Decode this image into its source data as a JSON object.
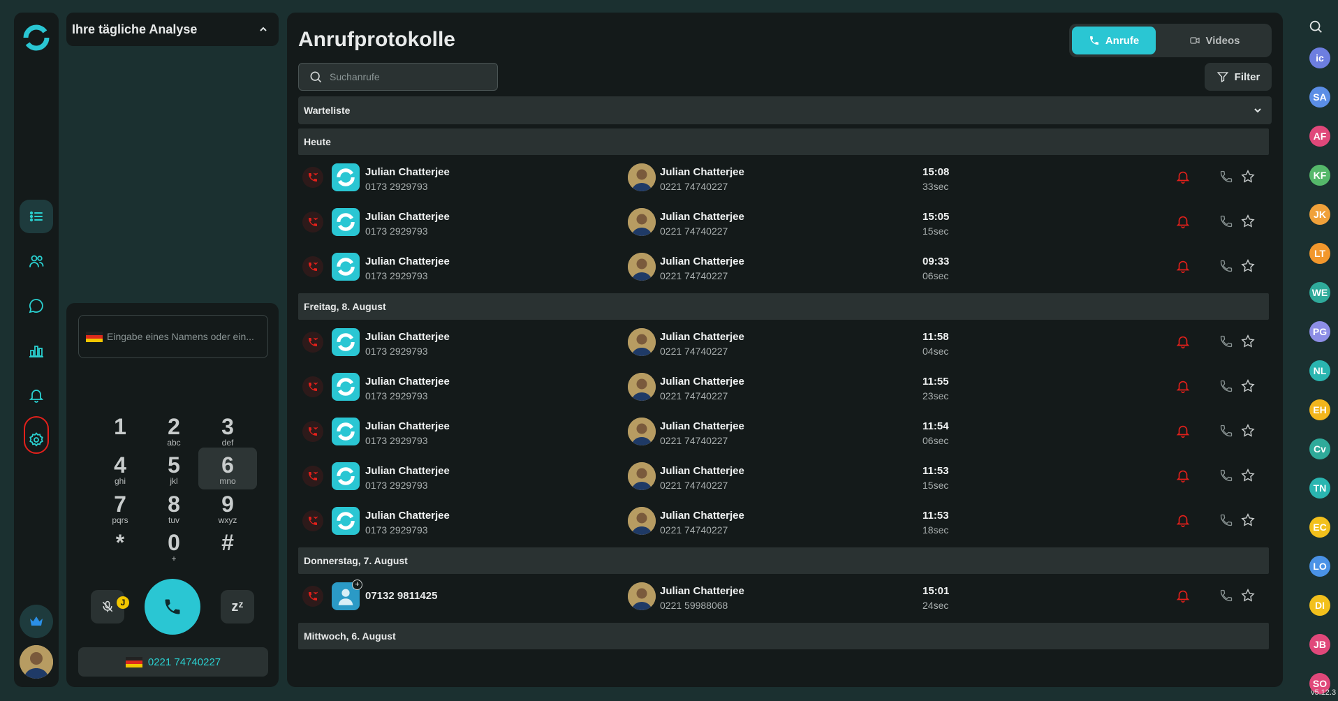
{
  "analysis_panel": {
    "title": "Ihre tägliche Analyse"
  },
  "dialer": {
    "input_placeholder": "Eingabe eines Namens oder ein...",
    "keys": [
      {
        "digit": "1",
        "letters": ""
      },
      {
        "digit": "2",
        "letters": "abc"
      },
      {
        "digit": "3",
        "letters": "def"
      },
      {
        "digit": "4",
        "letters": "ghi"
      },
      {
        "digit": "5",
        "letters": "jkl"
      },
      {
        "digit": "6",
        "letters": "mno"
      },
      {
        "digit": "7",
        "letters": "pqrs"
      },
      {
        "digit": "8",
        "letters": "tuv"
      },
      {
        "digit": "9",
        "letters": "wxyz"
      },
      {
        "digit": "*",
        "letters": ""
      },
      {
        "digit": "0",
        "letters": "+"
      },
      {
        "digit": "#",
        "letters": ""
      }
    ],
    "mic_badge": "J",
    "snooze_label": "zᶻ",
    "caller_id": "0221 74740227"
  },
  "header": {
    "title": "Anrufprotokolle",
    "tab_calls": "Anrufe",
    "tab_videos": "Videos",
    "search_placeholder": "Suchanrufe",
    "filter_label": "Filter",
    "waitlist_label": "Warteliste"
  },
  "sections": [
    {
      "label": "Heute",
      "rows": [
        {
          "from_name": "Julian Chatterjee",
          "from_number": "0173 2929793",
          "to_name": "Julian Chatterjee",
          "to_number": "0221 74740227",
          "time": "15:08",
          "duration": "33sec"
        },
        {
          "from_name": "Julian Chatterjee",
          "from_number": "0173 2929793",
          "to_name": "Julian Chatterjee",
          "to_number": "0221 74740227",
          "time": "15:05",
          "duration": "15sec"
        },
        {
          "from_name": "Julian Chatterjee",
          "from_number": "0173 2929793",
          "to_name": "Julian Chatterjee",
          "to_number": "0221 74740227",
          "time": "09:33",
          "duration": "06sec"
        }
      ]
    },
    {
      "label": "Freitag, 8. August",
      "rows": [
        {
          "from_name": "Julian Chatterjee",
          "from_number": "0173 2929793",
          "to_name": "Julian Chatterjee",
          "to_number": "0221 74740227",
          "time": "11:58",
          "duration": "04sec"
        },
        {
          "from_name": "Julian Chatterjee",
          "from_number": "0173 2929793",
          "to_name": "Julian Chatterjee",
          "to_number": "0221 74740227",
          "time": "11:55",
          "duration": "23sec"
        },
        {
          "from_name": "Julian Chatterjee",
          "from_number": "0173 2929793",
          "to_name": "Julian Chatterjee",
          "to_number": "0221 74740227",
          "time": "11:54",
          "duration": "06sec"
        },
        {
          "from_name": "Julian Chatterjee",
          "from_number": "0173 2929793",
          "to_name": "Julian Chatterjee",
          "to_number": "0221 74740227",
          "time": "11:53",
          "duration": "15sec"
        },
        {
          "from_name": "Julian Chatterjee",
          "from_number": "0173 2929793",
          "to_name": "Julian Chatterjee",
          "to_number": "0221 74740227",
          "time": "11:53",
          "duration": "18sec"
        }
      ]
    },
    {
      "label": "Donnerstag, 7. August",
      "rows": [
        {
          "from_name": "",
          "from_number": "07132 9811425",
          "unknown": true,
          "to_name": "Julian Chatterjee",
          "to_number": "0221 59988068",
          "time": "15:01",
          "duration": "24sec"
        }
      ]
    },
    {
      "label": "Mittwoch, 6. August",
      "rows": []
    }
  ],
  "contacts": [
    {
      "initials": "ic",
      "color": "#6d7ee0"
    },
    {
      "initials": "SA",
      "color": "#5b8ee6"
    },
    {
      "initials": "AF",
      "color": "#e0487a"
    },
    {
      "initials": "KF",
      "color": "#55b86a"
    },
    {
      "initials": "JK",
      "color": "#f0a13a"
    },
    {
      "initials": "LT",
      "color": "#f2972c"
    },
    {
      "initials": "WE",
      "color": "#2faa9a"
    },
    {
      "initials": "PG",
      "color": "#8d8ee6"
    },
    {
      "initials": "NL",
      "color": "#2ab5b0"
    },
    {
      "initials": "EH",
      "color": "#f2b51c"
    },
    {
      "initials": "Cv",
      "color": "#2faa9a"
    },
    {
      "initials": "TN",
      "color": "#2ab5b0"
    },
    {
      "initials": "EC",
      "color": "#f2c01c"
    },
    {
      "initials": "LO",
      "color": "#4a92e6"
    },
    {
      "initials": "DI",
      "color": "#f2c01c"
    },
    {
      "initials": "JB",
      "color": "#e0487a"
    },
    {
      "initials": "SO",
      "color": "#e0487a"
    }
  ],
  "version": "v5.12.3",
  "colors": {
    "accent": "#2ac6d3",
    "missed": "#e3201b",
    "panel": "#141a1a",
    "background": "#1b3030"
  }
}
